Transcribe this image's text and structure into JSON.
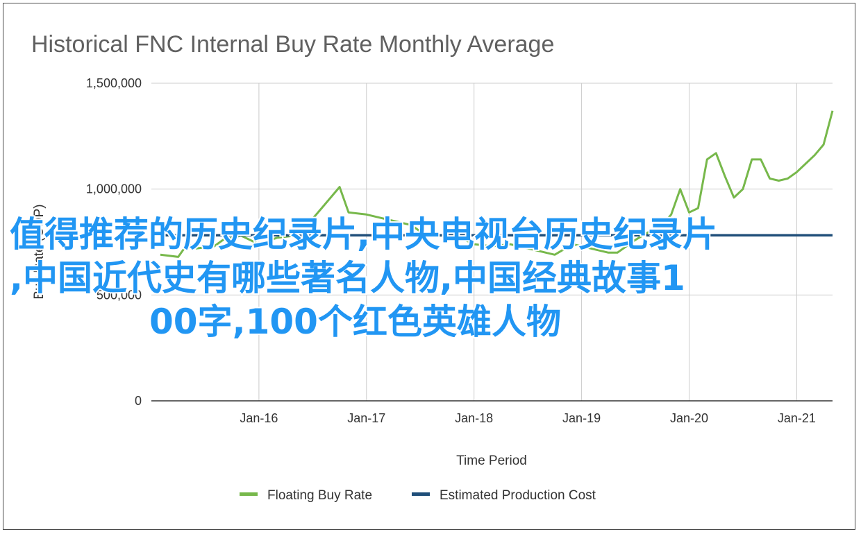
{
  "chart_data": {
    "type": "line",
    "title": "Historical FNC Internal Buy Rate Monthly Average",
    "xlabel": "Time Period",
    "ylabel": "Buy Rate (COP)",
    "ylim": [
      0,
      1500000
    ],
    "yticks": [
      {
        "value": 0,
        "label": "0"
      },
      {
        "value": 500000,
        "label": "500,000"
      },
      {
        "value": 1000000,
        "label": "1,000,000"
      },
      {
        "value": 1500000,
        "label": "1,500,000"
      }
    ],
    "xlim": [
      "2015-01",
      "2021-05"
    ],
    "xticks": [
      {
        "value": "2016-01",
        "label": "Jan-16"
      },
      {
        "value": "2017-01",
        "label": "Jan-17"
      },
      {
        "value": "2018-01",
        "label": "Jan-18"
      },
      {
        "value": "2019-01",
        "label": "Jan-19"
      },
      {
        "value": "2020-01",
        "label": "Jan-20"
      },
      {
        "value": "2021-01",
        "label": "Jan-21"
      }
    ],
    "grid": true,
    "legend_position": "bottom",
    "series": [
      {
        "name": "Floating Buy Rate",
        "color": "#77b84b",
        "x": [
          "2015-02",
          "2015-04",
          "2015-05",
          "2015-06",
          "2015-08",
          "2015-09",
          "2015-11",
          "2016-01",
          "2016-03",
          "2016-05",
          "2016-07",
          "2016-08",
          "2016-09",
          "2016-10",
          "2016-11",
          "2017-01",
          "2017-03",
          "2017-05",
          "2017-06",
          "2017-07",
          "2017-08",
          "2017-10",
          "2017-12",
          "2018-01",
          "2018-03",
          "2018-05",
          "2018-07",
          "2018-08",
          "2018-10",
          "2018-12",
          "2019-02",
          "2019-04",
          "2019-05",
          "2019-07",
          "2019-09",
          "2019-10",
          "2019-11",
          "2019-12",
          "2020-01",
          "2020-02",
          "2020-03",
          "2020-04",
          "2020-05",
          "2020-06",
          "2020-07",
          "2020-08",
          "2020-09",
          "2020-10",
          "2020-11",
          "2020-12",
          "2021-01",
          "2021-02",
          "2021-03",
          "2021-04",
          "2021-05"
        ],
        "values": [
          690000,
          680000,
          740000,
          720000,
          730000,
          760000,
          780000,
          740000,
          770000,
          780000,
          860000,
          910000,
          960000,
          1010000,
          890000,
          880000,
          860000,
          840000,
          830000,
          800000,
          780000,
          780000,
          760000,
          740000,
          730000,
          740000,
          720000,
          710000,
          690000,
          740000,
          720000,
          700000,
          700000,
          760000,
          810000,
          830000,
          880000,
          1000000,
          890000,
          910000,
          1140000,
          1170000,
          1060000,
          960000,
          1000000,
          1140000,
          1140000,
          1050000,
          1040000,
          1050000,
          1080000,
          1120000,
          1160000,
          1210000,
          1370000
        ]
      },
      {
        "name": "Estimated Production Cost",
        "color": "#1f4e79",
        "x": [
          "2015-02",
          "2021-05"
        ],
        "values": [
          782000,
          782000
        ]
      }
    ]
  },
  "overlay_text": {
    "line1": "值得推荐的历史纪录片,中央电视台历史纪录片",
    "line2": ",中国近代史有哪些著名人物,中国经典故事1",
    "line3": "00字,100个红色英雄人物"
  }
}
